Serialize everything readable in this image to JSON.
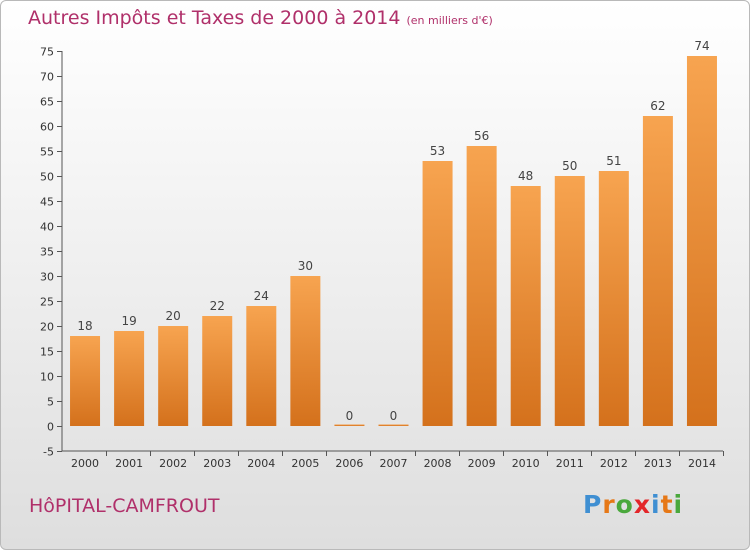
{
  "header": {
    "title": "Autres Impôts et Taxes de 2000 à 2014",
    "unit": "(en milliers d'€)"
  },
  "footer": {
    "commune": "HôPITAL-CAMFROUT",
    "logo_letters": [
      {
        "char": "P",
        "color": "#3f8fd2"
      },
      {
        "char": "r",
        "color": "#e67817"
      },
      {
        "char": "o",
        "color": "#4aa83c"
      },
      {
        "char": "x",
        "color": "#e3262a"
      },
      {
        "char": "i",
        "color": "#3f8fd2"
      },
      {
        "char": "t",
        "color": "#e67817"
      },
      {
        "char": "i",
        "color": "#4aa83c"
      }
    ]
  },
  "chart_data": {
    "type": "bar",
    "title": "Autres Impôts et Taxes de 2000 à 2014",
    "subtitle": "(en milliers d'€)",
    "categories": [
      "2000",
      "2001",
      "2002",
      "2003",
      "2004",
      "2005",
      "2006",
      "2007",
      "2008",
      "2009",
      "2010",
      "2011",
      "2012",
      "2013",
      "2014"
    ],
    "values": [
      18,
      19,
      20,
      22,
      24,
      30,
      0,
      0,
      53,
      56,
      48,
      50,
      51,
      62,
      74
    ],
    "ylim": [
      -5,
      75
    ],
    "yticks": [
      -5,
      0,
      5,
      10,
      15,
      20,
      25,
      30,
      35,
      40,
      45,
      50,
      55,
      60,
      65,
      70,
      75
    ],
    "grid": false,
    "bar_color_top": "#f7a450",
    "bar_color_bottom": "#d4711c",
    "label_color": "#444444"
  }
}
